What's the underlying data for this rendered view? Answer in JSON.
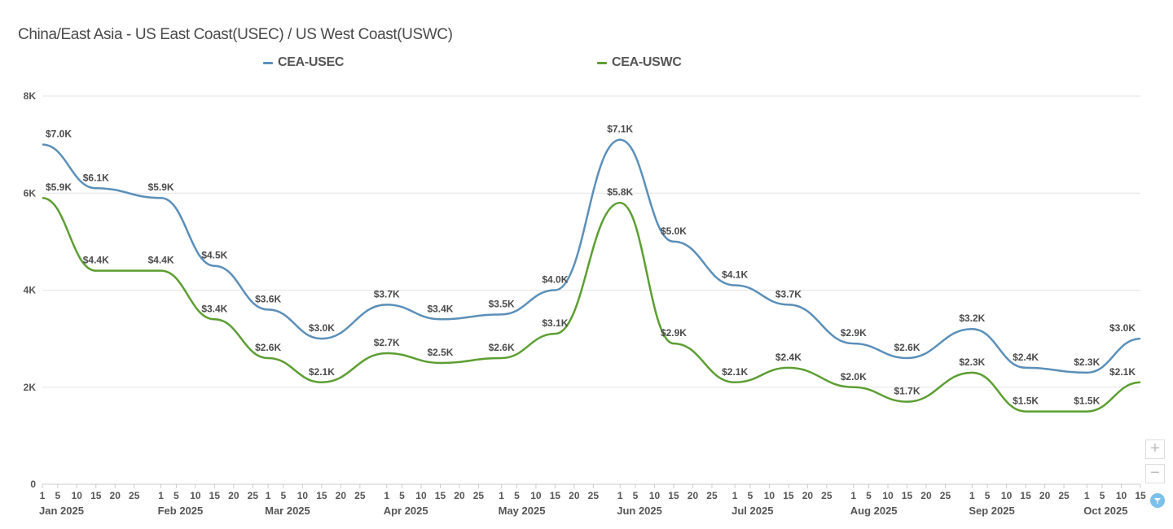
{
  "chart_data": {
    "type": "line",
    "title": "China/East Asia - US East Coast(USEC) / US West Coast(USWC)",
    "xlabel": "",
    "ylabel": "",
    "ylim": [
      0,
      8000
    ],
    "yticks": [
      0,
      2000,
      4000,
      6000,
      8000
    ],
    "ytick_labels": [
      "0",
      "2K",
      "4K",
      "6K",
      "8K"
    ],
    "x_day_ticks": [
      "1",
      "5",
      "10",
      "15",
      "20",
      "25"
    ],
    "x_months": [
      "Jan 2025",
      "Feb 2025",
      "Mar 2025",
      "Apr 2025",
      "May 2025",
      "Jun 2025",
      "Jul 2025",
      "Aug 2025",
      "Sep 2025",
      "Oct 2025"
    ],
    "grid": true,
    "legend_position": "top",
    "x": [
      "2025-01-01",
      "2025-01-15",
      "2025-02-01",
      "2025-02-15",
      "2025-03-01",
      "2025-03-15",
      "2025-04-01",
      "2025-04-15",
      "2025-05-01",
      "2025-05-15",
      "2025-06-01",
      "2025-06-15",
      "2025-07-01",
      "2025-07-15",
      "2025-08-01",
      "2025-08-15",
      "2025-09-01",
      "2025-09-15",
      "2025-10-01",
      "2025-10-15"
    ],
    "series": [
      {
        "name": "CEA-USEC",
        "color": "#5b8fb9",
        "values": [
          7000,
          6100,
          5900,
          4500,
          3600,
          3000,
          3700,
          3400,
          3500,
          4000,
          7100,
          5000,
          4100,
          3700,
          2900,
          2600,
          3200,
          2400,
          2300,
          3000
        ],
        "labels": [
          "$7.0K",
          "$6.1K",
          "$5.9K",
          "$4.5K",
          "$3.6K",
          "$3.0K",
          "$3.7K",
          "$3.4K",
          "$3.5K",
          "$4.0K",
          "$7.1K",
          "$5.0K",
          "$4.1K",
          "$3.7K",
          "$2.9K",
          "$2.6K",
          "$3.2K",
          "$2.4K",
          "$2.3K",
          "$3.0K"
        ]
      },
      {
        "name": "CEA-USWC",
        "color": "#5c9e32",
        "values": [
          5900,
          4400,
          4400,
          3400,
          2600,
          2100,
          2700,
          2500,
          2600,
          3100,
          5800,
          2900,
          2100,
          2400,
          2000,
          1700,
          2300,
          1500,
          1500,
          2100
        ],
        "labels": [
          "$5.9K",
          "$4.4K",
          "$4.4K",
          "$3.4K",
          "$2.6K",
          "$2.1K",
          "$2.7K",
          "$2.5K",
          "$2.6K",
          "$3.1K",
          "$5.8K",
          "$2.9K",
          "$2.1K",
          "$2.4K",
          "$2.0K",
          "$1.7K",
          "$2.3K",
          "$1.5K",
          "$1.5K",
          "$2.1K"
        ]
      }
    ]
  },
  "controls": {
    "zoom_in": "+",
    "zoom_out": "−",
    "filter_icon": "filter-icon"
  }
}
